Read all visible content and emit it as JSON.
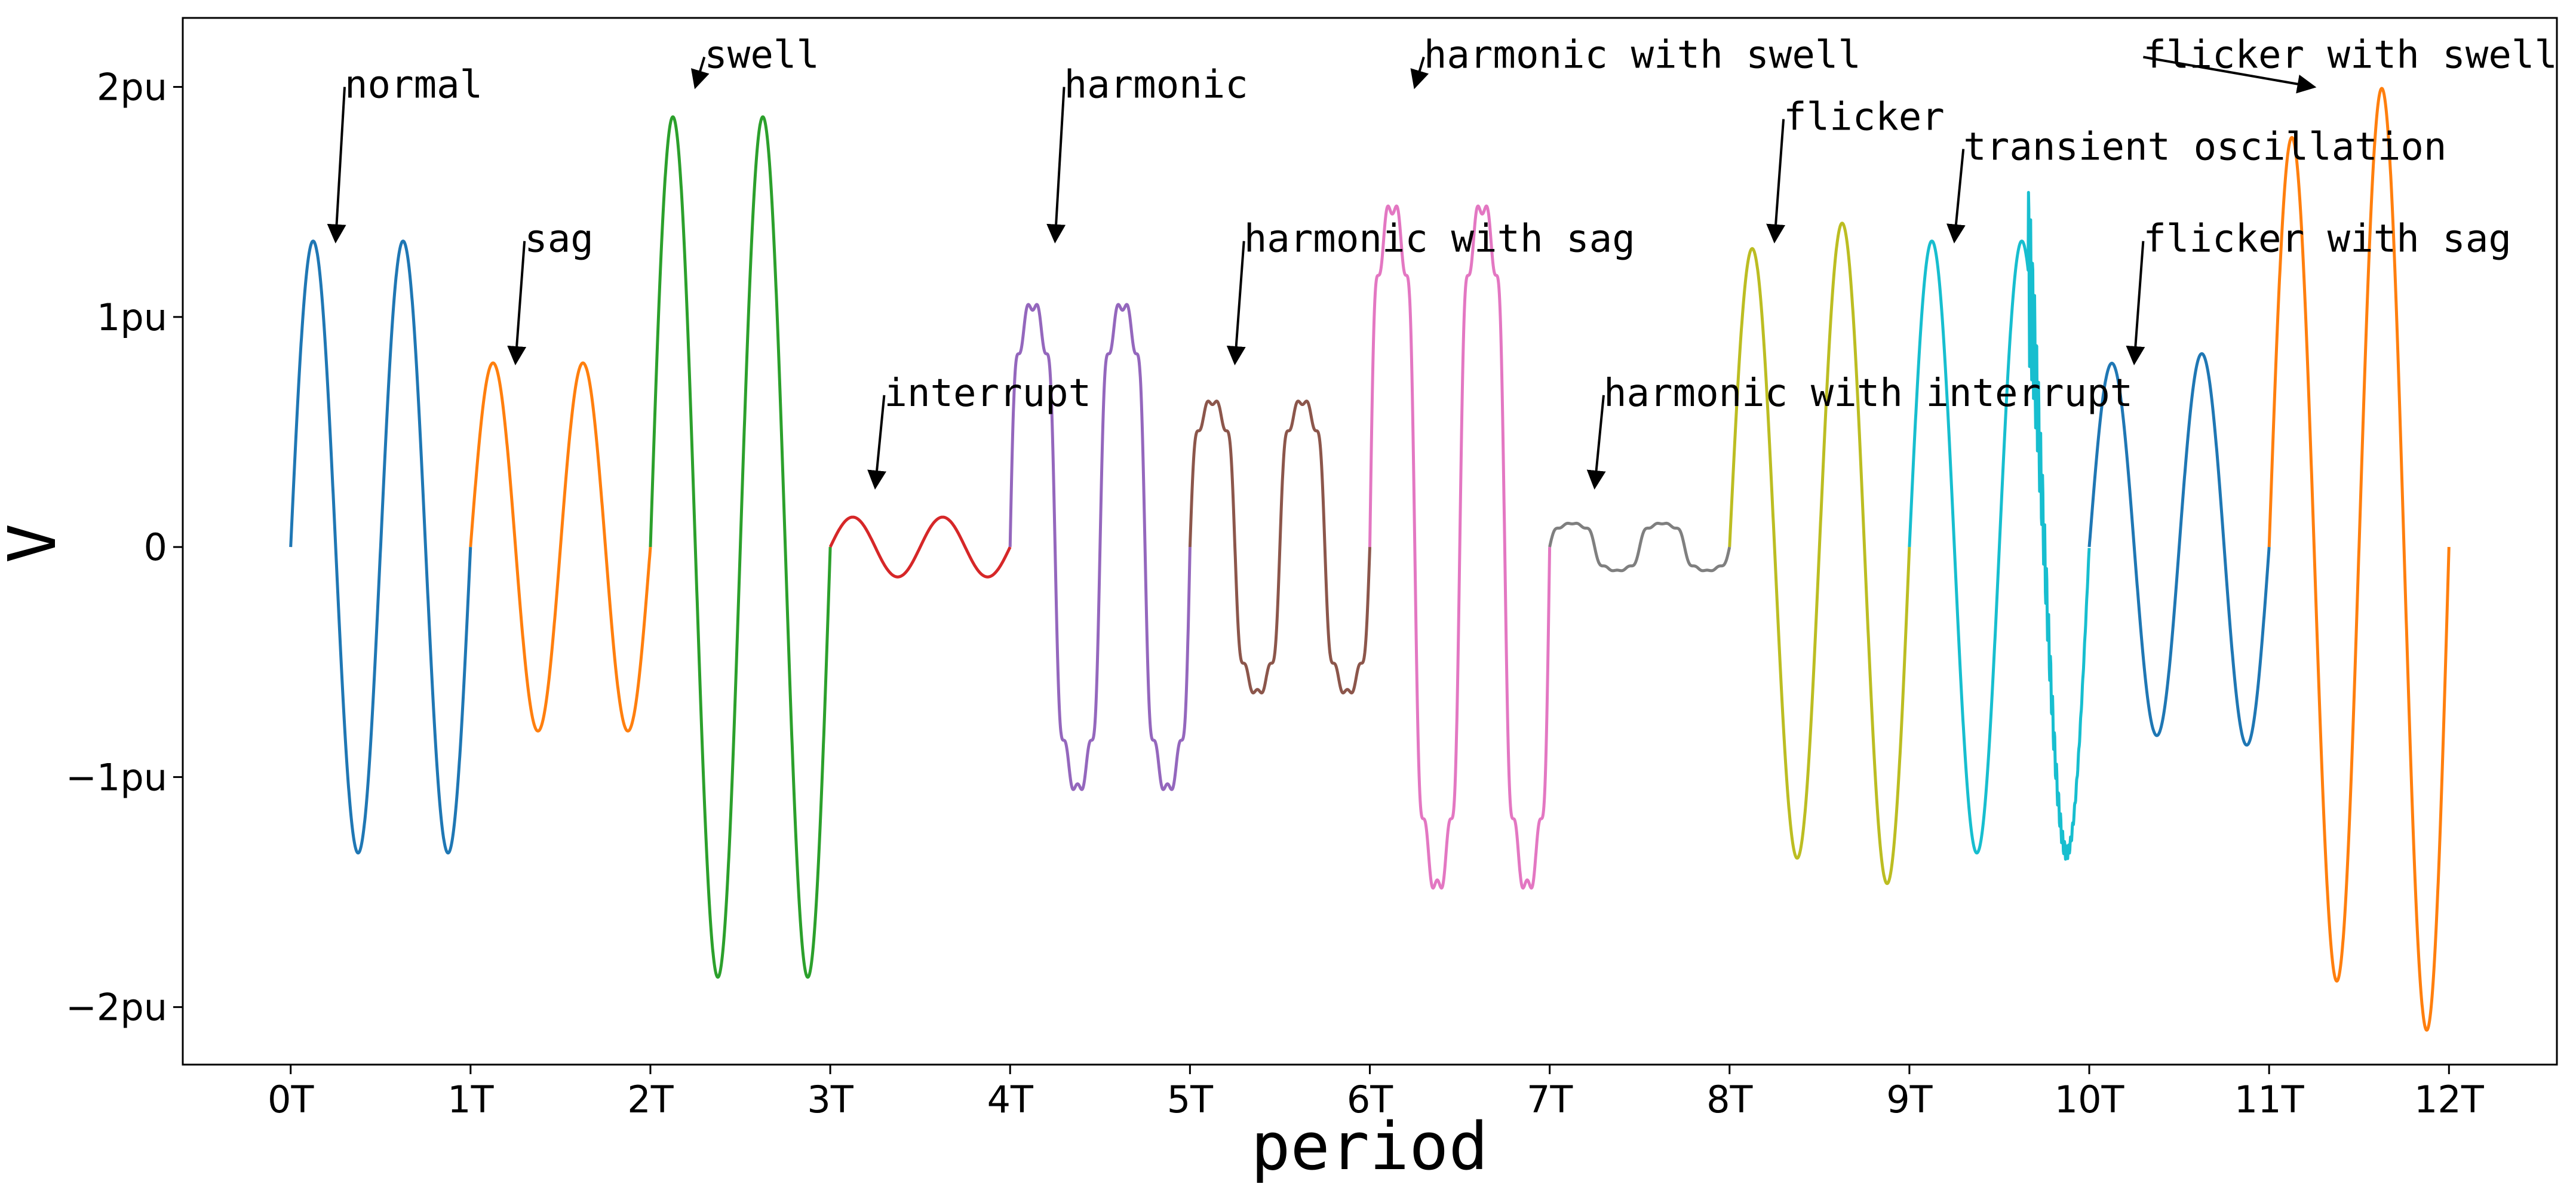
{
  "chart_data": {
    "type": "line",
    "xlabel": "period",
    "ylabel": "V",
    "xlim": [
      -0.6,
      12.6
    ],
    "ylim": [
      -2.25,
      2.3
    ],
    "x_ticks": [
      0,
      1,
      2,
      3,
      4,
      5,
      6,
      7,
      8,
      9,
      10,
      11,
      12
    ],
    "x_tick_labels": [
      "0T",
      "1T",
      "2T",
      "3T",
      "4T",
      "5T",
      "6T",
      "7T",
      "8T",
      "9T",
      "10T",
      "11T",
      "12T"
    ],
    "y_ticks": [
      -2,
      -1,
      0,
      1,
      2
    ],
    "y_tick_labels": [
      "−2pu",
      "−1pu",
      "0",
      "1pu",
      "2pu"
    ],
    "grid": false,
    "legend": "none",
    "samples_per_segment": 500,
    "series": [
      {
        "start": 0,
        "color": "#1f77b4",
        "amplitude": 1.33
      },
      {
        "start": 1,
        "color": "#ff7f0e",
        "amplitude": 0.8
      },
      {
        "start": 2,
        "color": "#2ca02c",
        "amplitude": 1.87
      },
      {
        "start": 3,
        "color": "#d62728",
        "amplitude": 0.13
      },
      {
        "start": 4,
        "color": "#9467bd",
        "amplitude": 1.33,
        "harmonic": true
      },
      {
        "start": 5,
        "color": "#8c564b",
        "amplitude": 0.8,
        "harmonic": true
      },
      {
        "start": 6,
        "color": "#e377c2",
        "amplitude": 1.87,
        "harmonic": true
      },
      {
        "start": 7,
        "color": "#7f7f7f",
        "amplitude": 0.13,
        "harmonic": true
      },
      {
        "start": 8,
        "color": "#bcbd22",
        "amplitude": 1.38,
        "flicker": 0.08
      },
      {
        "start": 9,
        "color": "#17becf",
        "amplitude": 1.33,
        "transient": true
      },
      {
        "start": 10,
        "color": "#1f77b4",
        "amplitude": 0.83,
        "flicker": 0.05
      },
      {
        "start": 11,
        "color": "#ff7f0e",
        "amplitude": 1.94,
        "flicker": 0.11
      }
    ],
    "annotations": [
      {
        "text": "normal",
        "xy": [
          0.25,
          1.33
        ],
        "xytext": [
          0.3,
          2.0
        ]
      },
      {
        "text": "sag",
        "xy": [
          1.25,
          0.8
        ],
        "xytext": [
          1.3,
          1.33
        ]
      },
      {
        "text": "swell",
        "xy": [
          2.25,
          2.0
        ],
        "xytext": [
          2.3,
          2.13
        ]
      },
      {
        "text": "interrupt",
        "xy": [
          3.25,
          0.26
        ],
        "xytext": [
          3.3,
          0.66
        ]
      },
      {
        "text": "harmonic",
        "xy": [
          4.25,
          1.33
        ],
        "xytext": [
          4.3,
          2.0
        ]
      },
      {
        "text": "harmonic with sag",
        "xy": [
          5.25,
          0.8
        ],
        "xytext": [
          5.3,
          1.33
        ]
      },
      {
        "text": "harmonic with swell",
        "xy": [
          6.25,
          2.0
        ],
        "xytext": [
          6.3,
          2.13
        ]
      },
      {
        "text": "harmonic with interrupt",
        "xy": [
          7.25,
          0.26
        ],
        "xytext": [
          7.3,
          0.66
        ]
      },
      {
        "text": "flicker",
        "xy": [
          8.25,
          1.33
        ],
        "xytext": [
          8.3,
          1.86
        ]
      },
      {
        "text": "transient oscillation",
        "xy": [
          9.25,
          1.33
        ],
        "xytext": [
          9.3,
          1.73
        ]
      },
      {
        "text": "flicker with sag",
        "xy": [
          10.25,
          0.8
        ],
        "xytext": [
          10.3,
          1.33
        ]
      },
      {
        "text": "flicker with swell",
        "xy": [
          11.25,
          2.0
        ],
        "xytext": [
          10.3,
          2.13
        ]
      }
    ]
  }
}
